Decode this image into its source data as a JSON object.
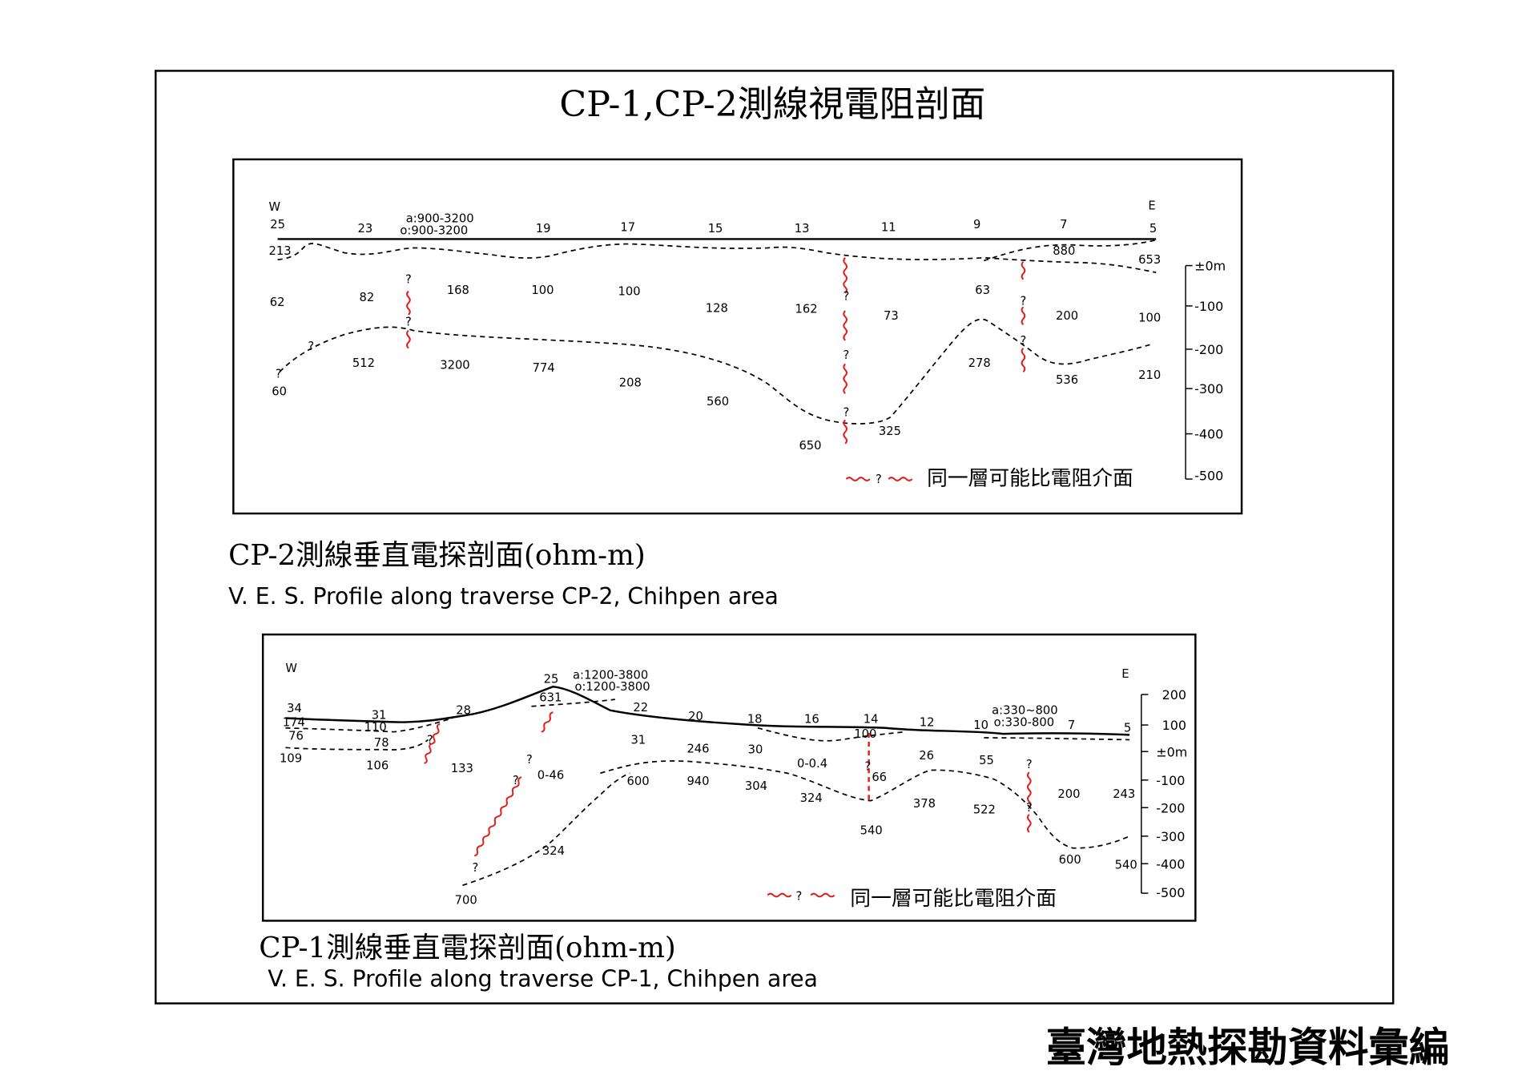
{
  "title": "CP-1,CP-2測線視電阻剖面",
  "footer": "臺灣地熱探勘資料彙編",
  "cp2": {
    "caption": "CP-2測線垂直電探剖面(ohm-m)",
    "subcaption": "V. E. S. Profile along traverse CP-2, Chihpen area",
    "west": "W",
    "east": "E",
    "stations": [
      "25",
      "23",
      "19",
      "17",
      "15",
      "13",
      "11",
      "9",
      "7",
      "5"
    ],
    "surface_note": [
      "a:900-3200",
      "o:900-3200"
    ],
    "values": [
      "213",
      "62",
      "82",
      "168",
      "100",
      "100",
      "128",
      "162",
      "73",
      "63",
      "880",
      "653",
      "200",
      "100",
      "512",
      "3200",
      "774",
      "208",
      "560",
      "650",
      "325",
      "278",
      "536",
      "210",
      "60"
    ],
    "question": "?",
    "elev_ticks": [
      "±0m",
      "-100",
      "-200",
      "-300",
      "-400",
      "-500"
    ],
    "legend_q": "?",
    "legend": "同一層可能比電阻介面"
  },
  "cp1": {
    "caption": "CP-1測線垂直電探剖面(ohm-m)",
    "subcaption": "V. E. S. Profile along traverse CP-1, Chihpen area",
    "west": "W",
    "east": "E",
    "stations": [
      "34",
      "31",
      "28",
      "25",
      "22",
      "20",
      "18",
      "16",
      "14",
      "12",
      "10",
      "7",
      "5"
    ],
    "notes_a": [
      "a:1200-3800",
      "o:1200-3800"
    ],
    "notes_b": [
      "a:330~800",
      "o:330-800"
    ],
    "values": [
      "174",
      "76",
      "109",
      "110",
      "78",
      "106",
      "133",
      "631",
      "0-46",
      "31",
      "600",
      "246",
      "940",
      "30",
      "304",
      "0-0.4",
      "324",
      "100",
      "66",
      "540",
      "26",
      "378",
      "55",
      "522",
      "200",
      "243",
      "600",
      "540",
      "324",
      "700"
    ],
    "question": "?",
    "elev_ticks": [
      "200",
      "100",
      "±0m",
      "-100",
      "-200",
      "-300",
      "-400",
      "-500"
    ],
    "legend_q": "?",
    "legend": "同一層可能比電阻介面"
  }
}
